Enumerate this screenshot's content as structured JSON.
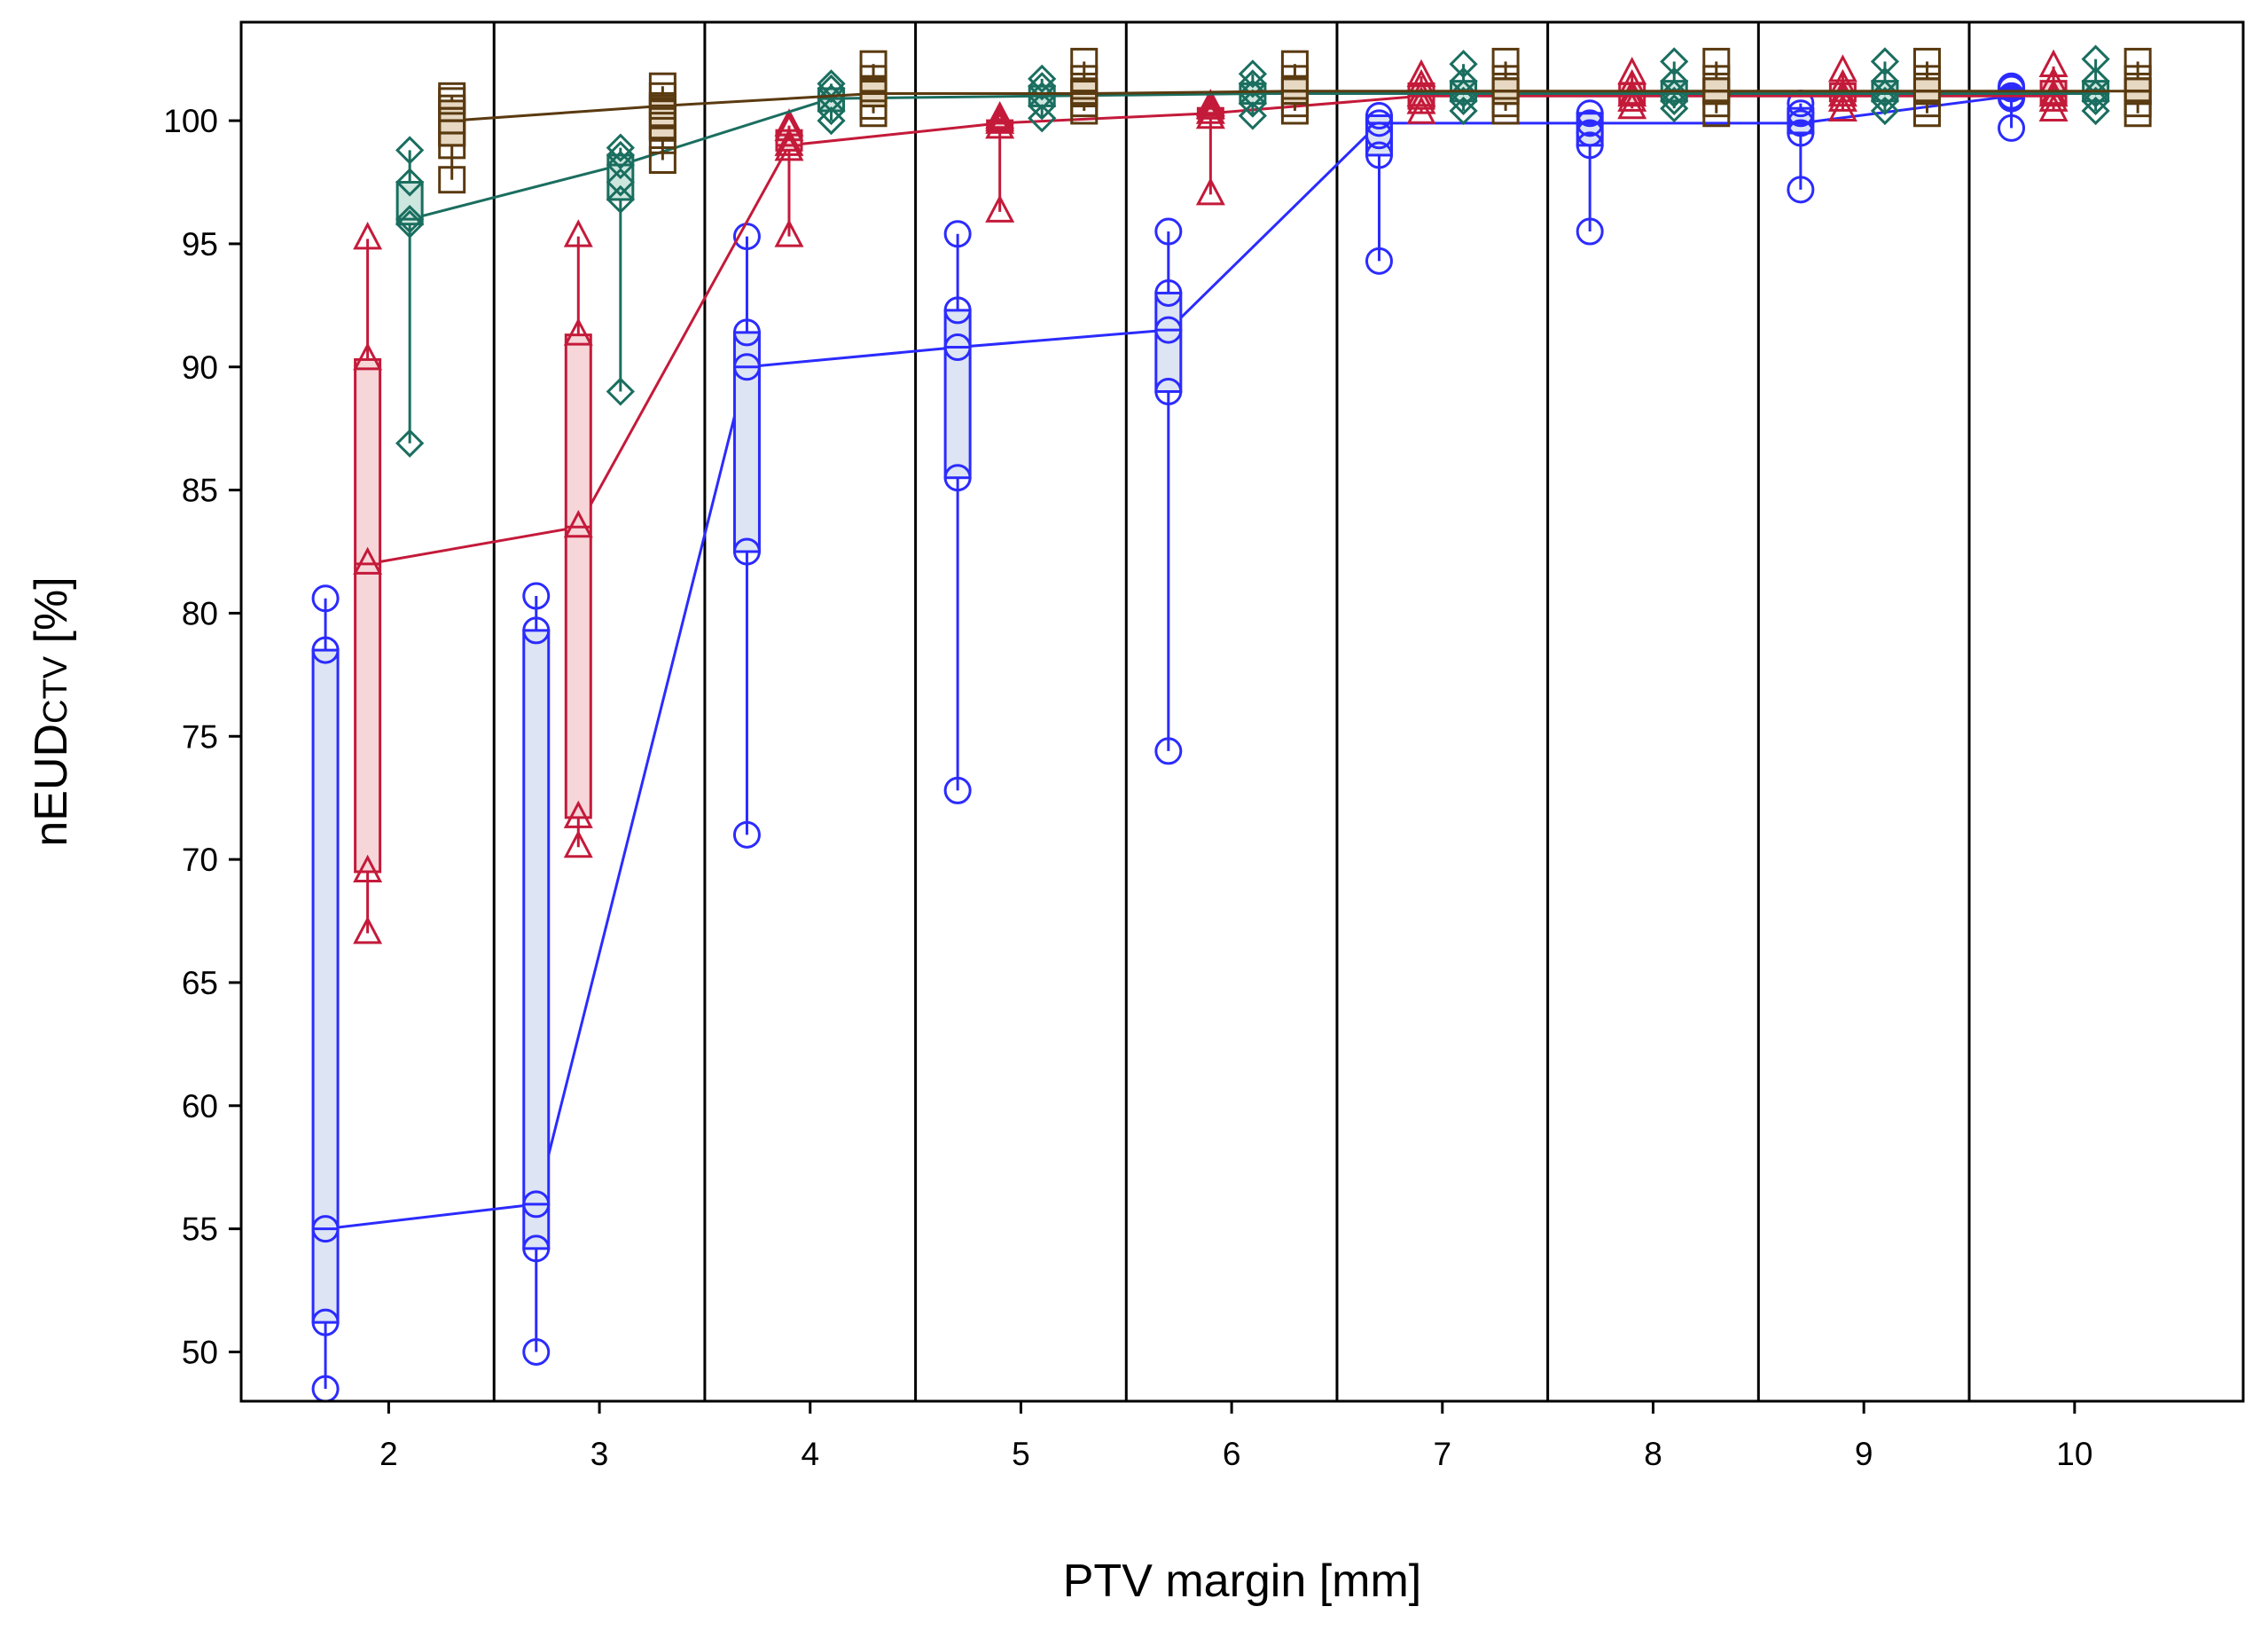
{
  "chart_data": {
    "type": "box-line",
    "title": "",
    "xlabel": "PTV margin [mm]",
    "ylabel": {
      "main": "nEUD",
      "subscript": "CTV",
      "unit": "[%]"
    },
    "ylim": [
      48,
      104
    ],
    "yticks": [
      50,
      55,
      60,
      65,
      70,
      75,
      80,
      85,
      90,
      95,
      100
    ],
    "categories": [
      "2",
      "3",
      "4",
      "5",
      "6",
      "7",
      "8",
      "9",
      "10"
    ],
    "x": [
      2,
      3,
      4,
      5,
      6,
      7,
      8,
      9,
      10
    ],
    "grid": "vertical separators between margin groups",
    "series": [
      {
        "name": "series-circle",
        "marker": "circle",
        "color": "#2b2bff",
        "fill": "#dde4f4",
        "offset": -0.3,
        "boxes": [
          {
            "q1": 51.2,
            "median": 55.0,
            "q3": 78.5,
            "whisker_low": 48.5,
            "whisker_high": 80.6,
            "points": [
              48.5,
              51.2,
              55.0,
              78.5,
              80.6
            ]
          },
          {
            "q1": 54.2,
            "median": 56.0,
            "q3": 79.3,
            "whisker_low": 50.0,
            "whisker_high": 80.7,
            "points": [
              50.0,
              54.2,
              56.0,
              79.3,
              80.7
            ]
          },
          {
            "q1": 82.5,
            "median": 90.0,
            "q3": 91.4,
            "whisker_low": 71.0,
            "whisker_high": 95.3,
            "points": [
              71.0,
              82.5,
              90.0,
              91.4,
              95.3
            ]
          },
          {
            "q1": 85.5,
            "median": 90.8,
            "q3": 92.3,
            "whisker_low": 72.8,
            "whisker_high": 95.4,
            "points": [
              72.8,
              85.5,
              90.8,
              92.3,
              95.4
            ]
          },
          {
            "q1": 89.0,
            "median": 91.5,
            "q3": 93.0,
            "whisker_low": 74.4,
            "whisker_high": 95.5,
            "points": [
              74.4,
              89.0,
              91.5,
              93.0,
              95.5
            ]
          },
          {
            "q1": 98.6,
            "median": 99.9,
            "q3": 100.2,
            "whisker_low": 94.3,
            "whisker_high": 100.2,
            "points": [
              94.3,
              98.6,
              99.4,
              99.9,
              100.2
            ]
          },
          {
            "q1": 99.0,
            "median": 99.9,
            "q3": 100.3,
            "whisker_low": 95.5,
            "whisker_high": 100.4,
            "points": [
              95.5,
              99.0,
              99.5,
              99.9,
              100.3
            ]
          },
          {
            "q1": 99.5,
            "median": 99.9,
            "q3": 100.5,
            "whisker_low": 97.2,
            "whisker_high": 100.7,
            "points": [
              97.2,
              99.5,
              99.9,
              100.3,
              100.7
            ]
          },
          {
            "q1": 100.9,
            "median": 101.0,
            "q3": 101.3,
            "whisker_low": 99.7,
            "whisker_high": 101.4,
            "points": [
              99.7,
              100.9,
              101.0,
              101.3,
              101.4
            ]
          }
        ]
      },
      {
        "name": "series-triangle",
        "marker": "triangle",
        "color": "#c41a3a",
        "fill": "#f7d6d9",
        "offset": -0.1,
        "boxes": [
          {
            "q1": 69.5,
            "median": 82.0,
            "q3": 90.3,
            "whisker_low": 67.0,
            "whisker_high": 95.2,
            "points": [
              67.0,
              69.5,
              82.0,
              90.3,
              95.2
            ]
          },
          {
            "q1": 71.7,
            "median": 83.5,
            "q3": 91.3,
            "whisker_low": 70.5,
            "whisker_high": 95.3,
            "points": [
              70.5,
              71.7,
              83.5,
              91.3,
              95.3
            ]
          },
          {
            "q1": 98.8,
            "median": 99.0,
            "q3": 99.6,
            "whisker_low": 95.3,
            "whisker_high": 99.8,
            "points": [
              95.3,
              98.8,
              99.0,
              99.6,
              99.8
            ]
          },
          {
            "q1": 99.7,
            "median": 99.9,
            "q3": 100.0,
            "whisker_low": 96.3,
            "whisker_high": 100.1,
            "points": [
              96.3,
              99.7,
              99.9,
              100.0,
              100.1
            ]
          },
          {
            "q1": 100.1,
            "median": 100.3,
            "q3": 100.5,
            "whisker_low": 97.0,
            "whisker_high": 100.6,
            "points": [
              97.0,
              100.1,
              100.3,
              100.5,
              100.6
            ]
          },
          {
            "q1": 100.5,
            "median": 101.0,
            "q3": 101.5,
            "whisker_low": 100.3,
            "whisker_high": 101.8,
            "points": [
              100.3,
              100.7,
              101.0,
              101.4,
              101.8
            ]
          },
          {
            "q1": 100.7,
            "median": 101.0,
            "q3": 101.5,
            "whisker_low": 100.5,
            "whisker_high": 101.9,
            "points": [
              100.5,
              100.8,
              101.0,
              101.4,
              101.9
            ]
          },
          {
            "q1": 100.8,
            "median": 101.0,
            "q3": 101.5,
            "whisker_low": 100.4,
            "whisker_high": 102.0,
            "points": [
              100.4,
              100.8,
              101.0,
              101.4,
              102.0
            ]
          },
          {
            "q1": 100.7,
            "median": 101.0,
            "q3": 101.6,
            "whisker_low": 100.4,
            "whisker_high": 102.2,
            "points": [
              100.4,
              100.8,
              101.0,
              101.5,
              102.2
            ]
          }
        ]
      },
      {
        "name": "series-diamond",
        "marker": "diamond",
        "color": "#1a6e5f",
        "fill": "#cde6de",
        "offset": 0.1,
        "boxes": [
          {
            "q1": 95.8,
            "median": 96.0,
            "q3": 97.5,
            "whisker_low": 86.9,
            "whisker_high": 98.8,
            "points": [
              86.9,
              95.8,
              96.0,
              97.5,
              98.8
            ]
          },
          {
            "q1": 96.8,
            "median": 98.2,
            "q3": 98.6,
            "whisker_low": 89.0,
            "whisker_high": 98.9,
            "points": [
              89.0,
              96.8,
              97.5,
              98.2,
              98.6,
              98.9
            ]
          },
          {
            "q1": 100.4,
            "median": 100.9,
            "q3": 101.3,
            "whisker_low": 100.0,
            "whisker_high": 101.5,
            "points": [
              100.0,
              100.4,
              100.9,
              101.3,
              101.5
            ]
          },
          {
            "q1": 100.6,
            "median": 101.0,
            "q3": 101.4,
            "whisker_low": 100.1,
            "whisker_high": 101.7,
            "points": [
              100.1,
              100.6,
              101.0,
              101.4,
              101.7
            ]
          },
          {
            "q1": 100.7,
            "median": 101.1,
            "q3": 101.5,
            "whisker_low": 100.2,
            "whisker_high": 101.9,
            "points": [
              100.2,
              100.7,
              101.1,
              101.5,
              101.9
            ]
          },
          {
            "q1": 100.8,
            "median": 101.1,
            "q3": 101.6,
            "whisker_low": 100.4,
            "whisker_high": 102.3,
            "points": [
              100.4,
              100.8,
              101.1,
              101.6,
              102.3
            ]
          },
          {
            "q1": 100.8,
            "median": 101.1,
            "q3": 101.6,
            "whisker_low": 100.5,
            "whisker_high": 102.4,
            "points": [
              100.5,
              100.8,
              101.1,
              101.6,
              102.4
            ]
          },
          {
            "q1": 100.8,
            "median": 101.1,
            "q3": 101.6,
            "whisker_low": 100.4,
            "whisker_high": 102.4,
            "points": [
              100.4,
              100.8,
              101.1,
              101.6,
              102.4
            ]
          },
          {
            "q1": 100.8,
            "median": 101.1,
            "q3": 101.6,
            "whisker_low": 100.4,
            "whisker_high": 102.5,
            "points": [
              100.4,
              100.8,
              101.1,
              101.6,
              102.5
            ]
          }
        ]
      },
      {
        "name": "series-square",
        "marker": "square",
        "color": "#5a3a10",
        "fill": "#e6d8c2",
        "offset": 0.3,
        "boxes": [
          {
            "q1": 99.0,
            "median": 100.0,
            "q3": 100.8,
            "whisker_low": 97.6,
            "whisker_high": 101.0,
            "points": [
              97.6,
              99.0,
              99.5,
              100.0,
              100.5,
              100.8,
              101.0
            ]
          },
          {
            "q1": 99.2,
            "median": 100.6,
            "q3": 101.0,
            "whisker_low": 98.4,
            "whisker_high": 101.4,
            "points": [
              98.4,
              99.2,
              99.8,
              100.3,
              100.6,
              101.0,
              101.4
            ]
          },
          {
            "q1": 100.6,
            "median": 101.1,
            "q3": 101.7,
            "whisker_low": 100.3,
            "whisker_high": 102.3,
            "points": [
              100.3,
              100.6,
              101.1,
              101.7,
              102.3
            ]
          },
          {
            "q1": 100.7,
            "median": 101.1,
            "q3": 101.7,
            "whisker_low": 100.4,
            "whisker_high": 102.4,
            "points": [
              100.4,
              100.7,
              101.1,
              101.7,
              102.4
            ]
          },
          {
            "q1": 100.7,
            "median": 101.2,
            "q3": 101.7,
            "whisker_low": 100.4,
            "whisker_high": 102.3,
            "points": [
              100.4,
              100.7,
              101.2,
              101.7,
              102.3
            ]
          },
          {
            "q1": 100.7,
            "median": 101.2,
            "q3": 101.7,
            "whisker_low": 100.4,
            "whisker_high": 102.4,
            "points": [
              100.4,
              100.7,
              101.2,
              101.7,
              102.4
            ]
          },
          {
            "q1": 100.7,
            "median": 101.2,
            "q3": 101.7,
            "whisker_low": 100.3,
            "whisker_high": 102.4,
            "points": [
              100.3,
              100.7,
              101.2,
              101.7,
              102.4
            ]
          },
          {
            "q1": 100.7,
            "median": 101.2,
            "q3": 101.7,
            "whisker_low": 100.3,
            "whisker_high": 102.4,
            "points": [
              100.3,
              100.7,
              101.2,
              101.7,
              102.4
            ]
          },
          {
            "q1": 100.7,
            "median": 101.2,
            "q3": 101.7,
            "whisker_low": 100.3,
            "whisker_high": 102.4,
            "points": [
              100.3,
              100.7,
              101.2,
              101.7,
              102.4
            ]
          }
        ]
      }
    ]
  }
}
